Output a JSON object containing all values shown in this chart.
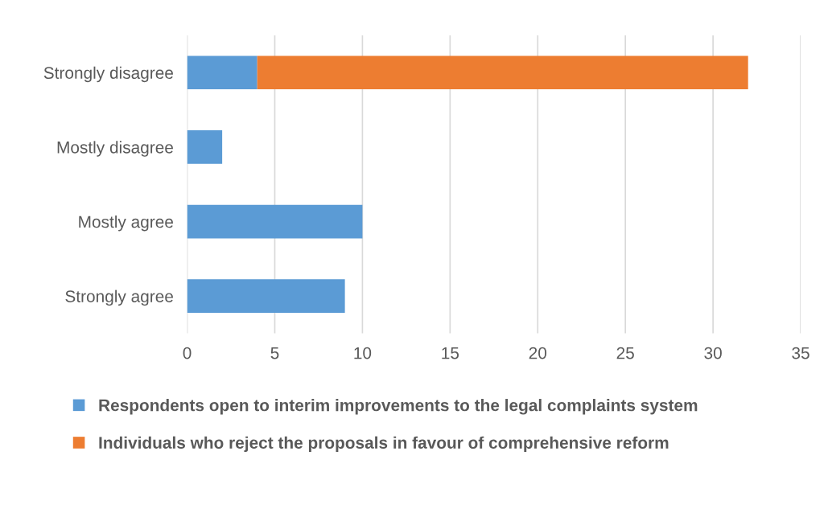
{
  "chart_data": {
    "type": "bar",
    "orientation": "horizontal",
    "stacked": true,
    "categories": [
      "Strongly disagree",
      "Mostly disagree",
      "Mostly agree",
      "Strongly agree"
    ],
    "series": [
      {
        "name": "Respondents open to interim improvements to the legal complaints system",
        "color": "#5b9bd5",
        "values": [
          4,
          2,
          10,
          9
        ]
      },
      {
        "name": "Individuals who reject the proposals in favour of comprehensive reform",
        "color": "#ed7d31",
        "values": [
          28,
          null,
          null,
          null
        ]
      }
    ],
    "xlim": [
      0,
      35
    ],
    "xticks": [
      0,
      5,
      10,
      15,
      20,
      25,
      30,
      35
    ],
    "grid": "x",
    "legend": "bottom"
  }
}
